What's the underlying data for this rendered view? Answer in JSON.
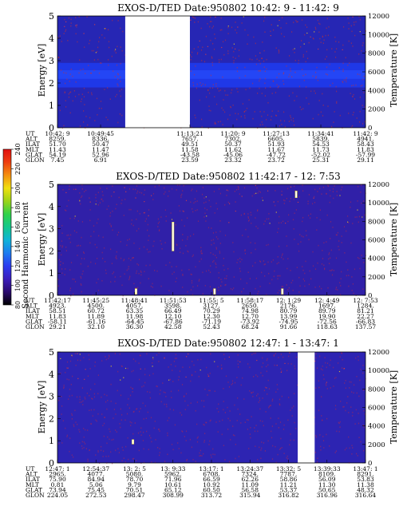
{
  "colorbar": {
    "label": "Second Harmonic Current",
    "ticks": [
      "80",
      "100",
      "120",
      "140",
      "160",
      "180",
      "200",
      "220",
      "240"
    ],
    "colors": [
      "#000000",
      "#2a0a6e",
      "#3b1ebd",
      "#2c3cf0",
      "#1e7cf0",
      "#10b4d8",
      "#14c88c",
      "#30d24a",
      "#9cd41a",
      "#f0e010",
      "#f49010",
      "#ee3e10",
      "#e01010"
    ]
  },
  "chart_data": [
    {
      "type": "heatmap",
      "title": "EXOS-D/TED   Date:950802  10:42: 9 - 11:42: 9",
      "ylabel": "Energy [eV]",
      "ylabel_right": "Temperature [K]",
      "ylim": [
        0,
        5
      ],
      "yticks": [
        "0",
        "1",
        "2",
        "3",
        "4",
        "5"
      ],
      "right_ylim": [
        0,
        12000
      ],
      "right_ticks": [
        "0",
        "2000",
        "4000",
        "6000",
        "8000",
        "10000",
        "12000"
      ],
      "colors": {
        "background": "#2626b4",
        "band": "#1e3cf0",
        "speckle": "#c83232",
        "gap": "#ffffff"
      },
      "band_energy_ev": [
        1.8,
        2.9
      ],
      "data_gaps": [
        [
          0.22,
          0.43
        ]
      ],
      "streaks": [],
      "orbit_labels": [
        "UT",
        "ALT",
        "ILAT",
        "MLT",
        "GLAT",
        "GLON"
      ],
      "orbit_columns": [
        {
          "pos": 0.0,
          "values": [
            "10:42: 9",
            "8259.",
            "51.70",
            "11.43",
            "54.19",
            "7.45"
          ]
        },
        {
          "pos": 0.14,
          "values": [
            "10:49:45",
            "8336.",
            "50.47",
            "11.47",
            "52.96",
            "6.91"
          ]
        },
        {
          "pos": 0.43,
          "values": [
            "11:13:21",
            "7657.",
            "49.51",
            "11.58",
            "-43.58",
            "23.59"
          ]
        },
        {
          "pos": 0.57,
          "values": [
            "11:20: 9",
            "7302.",
            "50.37",
            "11.62",
            "-45.06",
            "23.32"
          ]
        },
        {
          "pos": 0.71,
          "values": [
            "11:27:13",
            "6605.",
            "51.93",
            "11.67",
            "-47.72",
            "23.72"
          ]
        },
        {
          "pos": 0.855,
          "values": [
            "11:34:41",
            "5839.",
            "54.53",
            "11.73",
            "-52.02",
            "25.31"
          ]
        },
        {
          "pos": 1.0,
          "values": [
            "11:42: 9",
            "4941.",
            "58.43",
            "11.83",
            "-57.99",
            "29.11"
          ]
        }
      ]
    },
    {
      "type": "heatmap",
      "title": "EXOS-D/TED   Date:950802  11:42:17 - 12: 7:53",
      "ylabel": "Energy [eV]",
      "ylabel_right": "Temperature [K]",
      "ylim": [
        0,
        5
      ],
      "yticks": [
        "0",
        "1",
        "2",
        "3",
        "4",
        "5"
      ],
      "right_ylim": [
        0,
        12000
      ],
      "right_ticks": [
        "0",
        "2000",
        "4000",
        "6000",
        "8000",
        "10000",
        "12000"
      ],
      "colors": {
        "background": "#3020a8",
        "band": "#2a3ee0",
        "speckle": "#b02850",
        "gap": "#ffffff"
      },
      "band_energy_ev": null,
      "data_gaps": [],
      "streaks": [
        {
          "x": 0.255,
          "e0": 0.05,
          "e1": 0.3
        },
        {
          "x": 0.375,
          "e0": 2.0,
          "e1": 3.3
        },
        {
          "x": 0.51,
          "e0": 0.05,
          "e1": 0.3
        },
        {
          "x": 0.73,
          "e0": 0.05,
          "e1": 0.3
        },
        {
          "x": 0.775,
          "e0": 4.4,
          "e1": 4.7
        }
      ],
      "orbit_labels": [
        "UT",
        "ALT",
        "ILAT",
        "MLT",
        "GLAT",
        "GLON"
      ],
      "orbit_columns": [
        {
          "pos": 0.0,
          "values": [
            "11:42:17",
            "4923.",
            "58.51",
            "11.83",
            "-58.11",
            "29.21"
          ]
        },
        {
          "pos": 0.125,
          "values": [
            "11:45:25",
            "4500.",
            "60.72",
            "11.89",
            "-61.16",
            "32.10"
          ]
        },
        {
          "pos": 0.25,
          "values": [
            "11:48:41",
            "4057.",
            "63.35",
            "11.98",
            "-64.45",
            "36.30"
          ]
        },
        {
          "pos": 0.375,
          "values": [
            "11:51:53",
            "3598.",
            "66.49",
            "12.10",
            "-67.86",
            "42.58"
          ]
        },
        {
          "pos": 0.5,
          "values": [
            "11:55: 5",
            "3127.",
            "70.29",
            "12.30",
            "-71.19",
            "52.43"
          ]
        },
        {
          "pos": 0.625,
          "values": [
            "11:58:17",
            "2650.",
            "74.98",
            "12.70",
            "-73.92",
            "68.24"
          ]
        },
        {
          "pos": 0.75,
          "values": [
            "12: 1:29",
            "2176.",
            "80.79",
            "13.99",
            "-74.95",
            "91.66"
          ]
        },
        {
          "pos": 0.875,
          "values": [
            "12: 4:49",
            "1697.",
            "89.79",
            "19.90",
            "-72.56",
            "118.63"
          ]
        },
        {
          "pos": 1.0,
          "values": [
            "12: 7:53",
            "1284.",
            "81.21",
            "22.27",
            "-66.83",
            "137.57"
          ]
        }
      ]
    },
    {
      "type": "heatmap",
      "title": "EXOS-D/TED   Date:950802  12:47: 1 - 13:47: 1",
      "ylabel": "Energy [eV]",
      "ylabel_right": "Temperature [K]",
      "ylim": [
        0,
        5
      ],
      "yticks": [
        "0",
        "1",
        "2",
        "3",
        "4",
        "5"
      ],
      "right_ylim": [
        0,
        12000
      ],
      "right_ticks": [
        "0",
        "2000",
        "4000",
        "6000",
        "8000",
        "10000",
        "12000"
      ],
      "colors": {
        "background": "#2d24b2",
        "band": "#2d24b2",
        "speckle": "#b02850",
        "gap": "#ffffff"
      },
      "band_energy_ev": null,
      "data_gaps": [
        [
          0.78,
          0.835
        ]
      ],
      "streaks": [
        {
          "x": 0.245,
          "e0": 0.85,
          "e1": 1.05
        }
      ],
      "orbit_labels": [
        "UT",
        "ALT",
        "ILAT",
        "MLT",
        "GLAT",
        "GLON"
      ],
      "orbit_columns": [
        {
          "pos": 0.0,
          "values": [
            "12:47: 1",
            "2965.",
            "75.90",
            "0.81",
            "73.94",
            "224.05"
          ]
        },
        {
          "pos": 0.125,
          "values": [
            "12:54:37",
            "4077.",
            "84.94",
            "5.06",
            "75.45",
            "272.53"
          ]
        },
        {
          "pos": 0.25,
          "values": [
            "13: 2: 5",
            "5080.",
            "78.70",
            "9.79",
            "70.51",
            "298.47"
          ]
        },
        {
          "pos": 0.375,
          "values": [
            "13: 9:33",
            "5962.",
            "71.96",
            "10.61",
            "65.12",
            "308.99"
          ]
        },
        {
          "pos": 0.5,
          "values": [
            "13:17: 1",
            "6708.",
            "66.59",
            "10.92",
            "60.50",
            "313.72"
          ]
        },
        {
          "pos": 0.625,
          "values": [
            "13:24:37",
            "7324.",
            "62.26",
            "11.09",
            "56.58",
            "315.94"
          ]
        },
        {
          "pos": 0.75,
          "values": [
            "13:32: 5",
            "7787.",
            "58.86",
            "11.21",
            "53.37",
            "316.82"
          ]
        },
        {
          "pos": 0.875,
          "values": [
            "13:39:33",
            "8109.",
            "56.09",
            "11.30",
            "50.65",
            "316.96"
          ]
        },
        {
          "pos": 1.0,
          "values": [
            "13:47: 1",
            "8291.",
            "53.83",
            "11.38",
            "48.32",
            "316.64"
          ]
        }
      ]
    }
  ]
}
